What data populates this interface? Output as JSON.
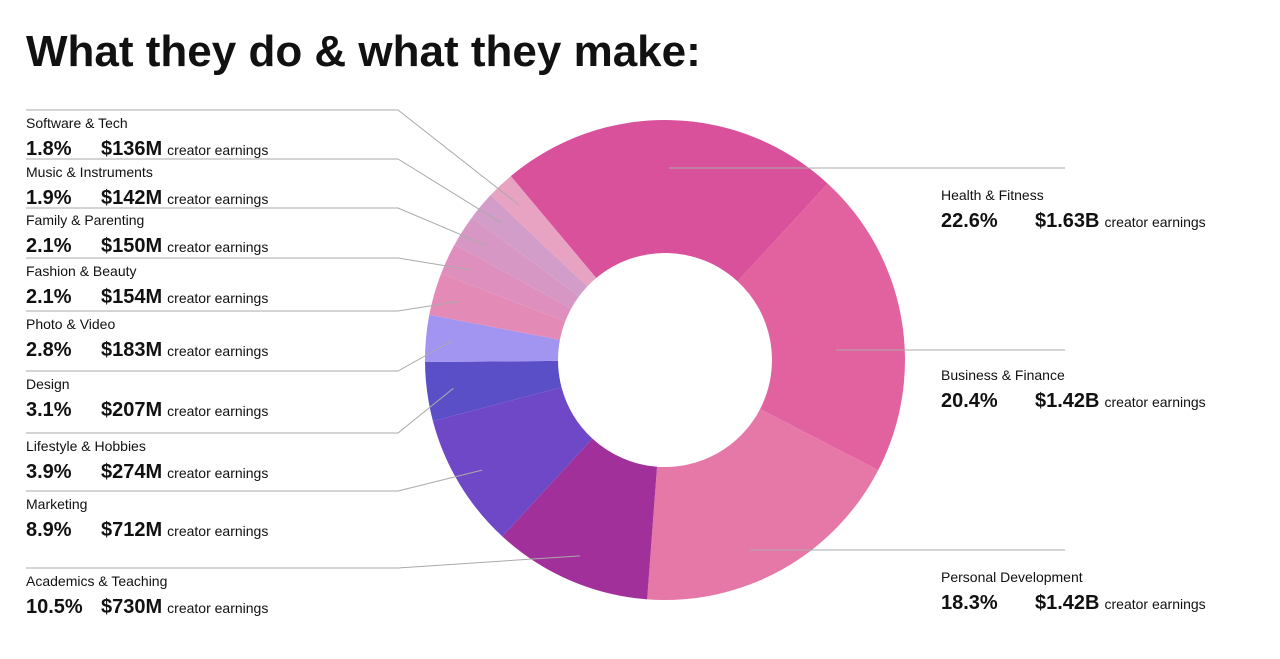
{
  "chart_data": {
    "type": "donut",
    "title": "What they do & what they make:",
    "categories": [
      "Health & Fitness",
      "Business & Finance",
      "Personal Development",
      "Academics & Teaching",
      "Marketing",
      "Lifestyle & Hobbies",
      "Design",
      "Photo & Video",
      "Fashion & Beauty",
      "Family & Parenting",
      "Music & Instruments",
      "Software & Tech"
    ],
    "values": [
      22.6,
      20.4,
      18.3,
      10.5,
      8.9,
      3.9,
      3.1,
      2.8,
      2.1,
      2.1,
      1.9,
      1.8
    ],
    "value_labels": [
      "22.6%",
      "20.4%",
      "18.3%",
      "10.5%",
      "8.9%",
      "3.9%",
      "3.1%",
      "2.8%",
      "2.1%",
      "2.1%",
      "1.9%",
      "1.8%"
    ],
    "earnings": [
      "$1.63B",
      "$1.42B",
      "$1.42B",
      "$730M",
      "$712M",
      "$274M",
      "$207M",
      "$183M",
      "$154M",
      "$150M",
      "$142M",
      "$136M"
    ],
    "earnings_note": "creator earnings",
    "colors": [
      "#d9519b",
      "#e2629f",
      "#e678a8",
      "#a2309a",
      "#6f48c8",
      "#5a4fc6",
      "#a295f2",
      "#e48ab6",
      "#df8fbd",
      "#d797c4",
      "#d39dca",
      "#e8a2c2"
    ]
  }
}
